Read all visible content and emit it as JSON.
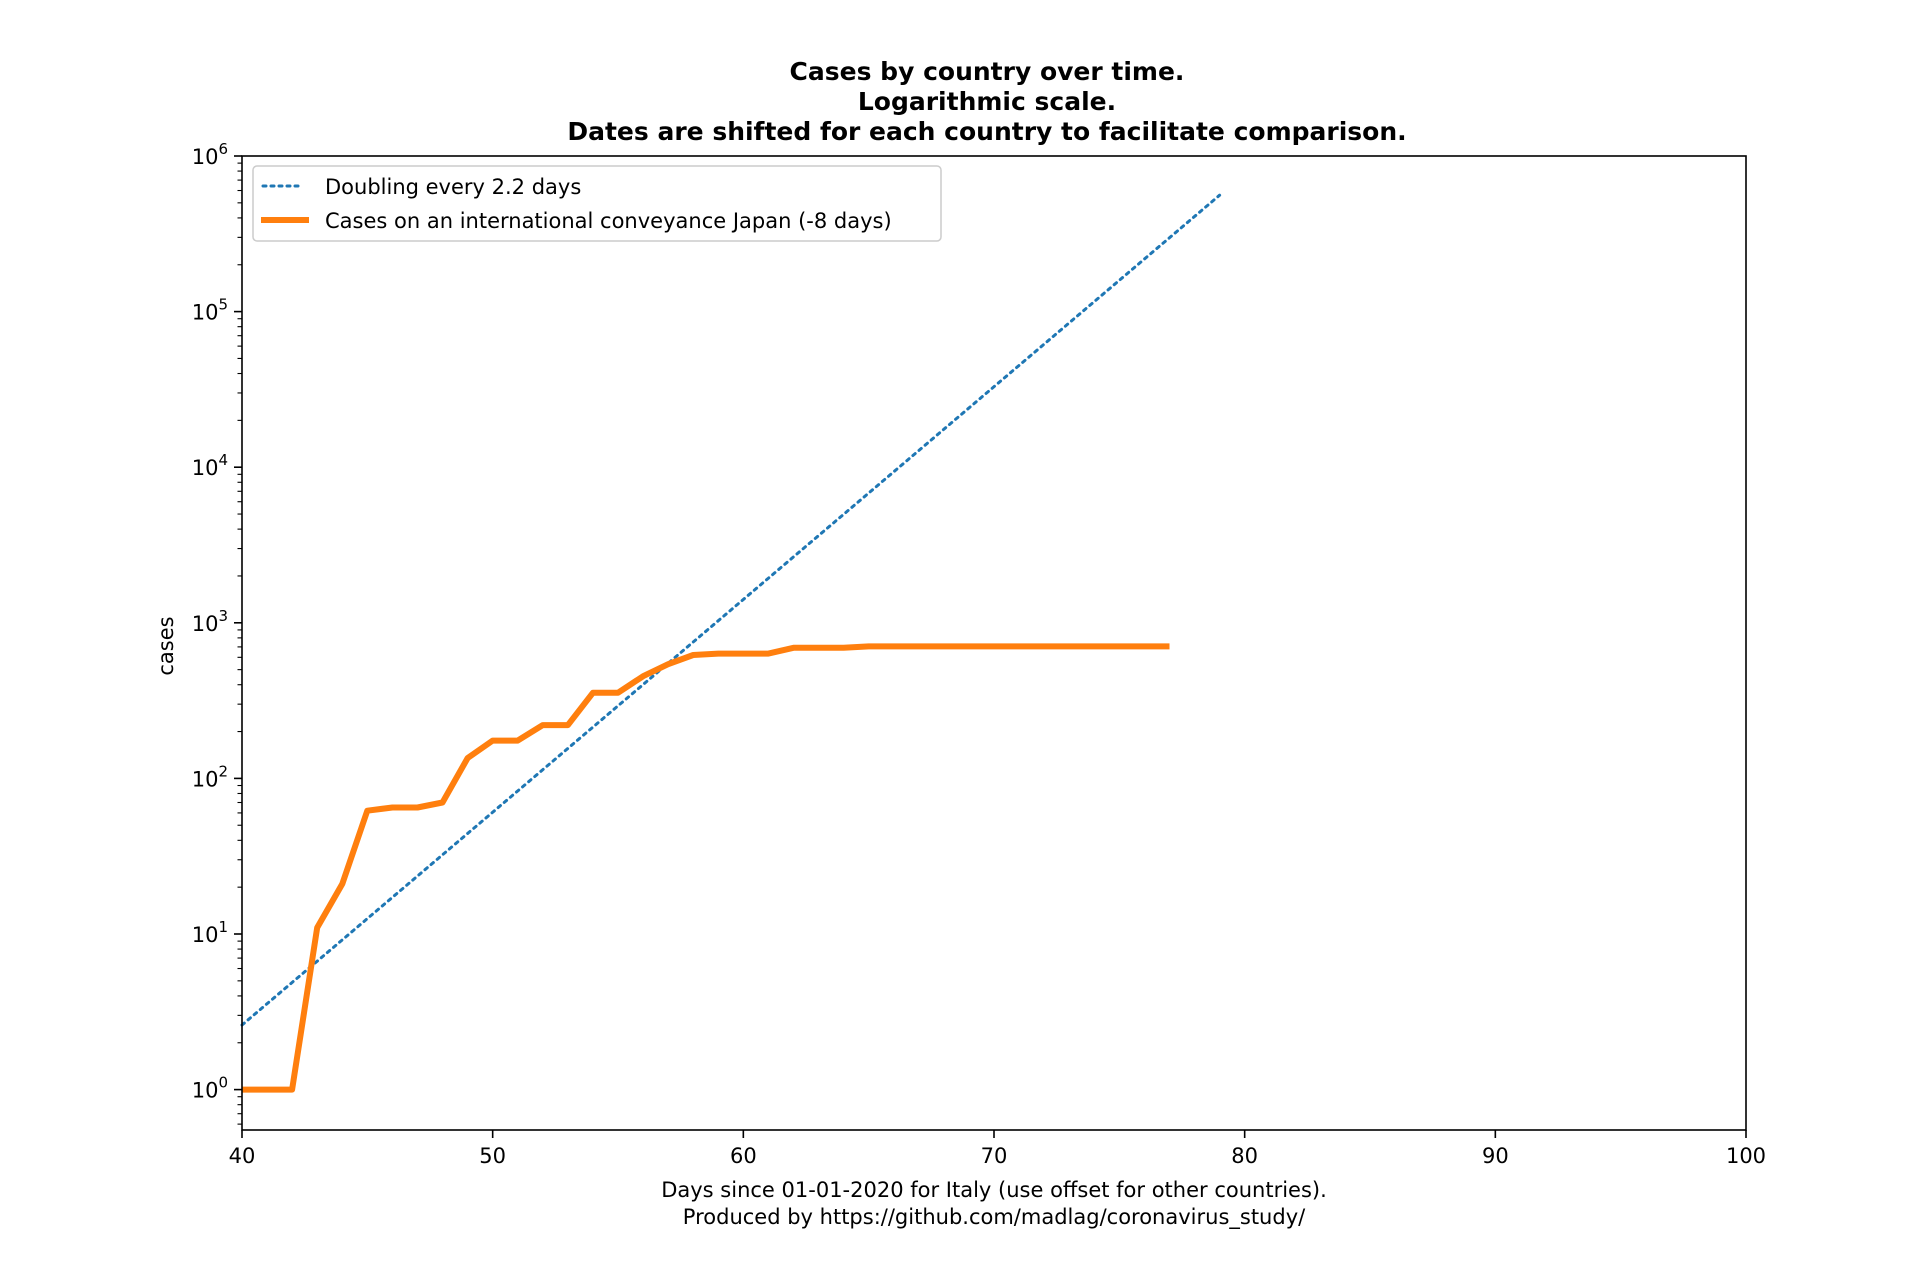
{
  "chart_data": {
    "type": "line",
    "title_lines": [
      "Cases by country over time.",
      "Logarithmic scale.",
      "Dates are shifted for each country to facilitate comparison."
    ],
    "xlabel_lines": [
      "Days since 01-01-2020 for Italy (use offset for other countries).",
      "Produced by https://github.com/madlag/coronavirus_study/"
    ],
    "ylabel": "cases",
    "xlim": [
      40,
      100
    ],
    "ylim": [
      0.55,
      1000000
    ],
    "yscale": "log",
    "xticks": [
      40,
      50,
      60,
      70,
      80,
      90,
      100
    ],
    "yticks": [
      {
        "value": 1,
        "base": "10",
        "exp": "0"
      },
      {
        "value": 10,
        "base": "10",
        "exp": "1"
      },
      {
        "value": 100,
        "base": "10",
        "exp": "2"
      },
      {
        "value": 1000,
        "base": "10",
        "exp": "3"
      },
      {
        "value": 10000,
        "base": "10",
        "exp": "4"
      },
      {
        "value": 100000,
        "base": "10",
        "exp": "5"
      },
      {
        "value": 1000000,
        "base": "10",
        "exp": "6"
      }
    ],
    "grid": false,
    "legend_position": "top-left",
    "series": [
      {
        "name": "Doubling every 2.2 days",
        "style": "dotted",
        "color": "#1f77b4",
        "x": [
          40,
          79
        ],
        "y": [
          2.6,
          560000
        ]
      },
      {
        "name": "Cases on an international conveyance Japan (-8 days)",
        "style": "solid",
        "color": "#ff7f0e",
        "x": [
          40,
          41,
          42,
          43,
          44,
          45,
          46,
          47,
          48,
          49,
          50,
          51,
          52,
          53,
          54,
          55,
          56,
          57,
          58,
          59,
          60,
          61,
          62,
          63,
          64,
          65,
          66,
          67,
          68,
          69,
          70,
          71,
          72,
          73,
          74,
          75,
          76,
          77
        ],
        "y": [
          1,
          1,
          1,
          11,
          21,
          62,
          65,
          65,
          70,
          135,
          175,
          175,
          220,
          220,
          355,
          355,
          454,
          542,
          621,
          634,
          634,
          634,
          691,
          691,
          691,
          705,
          705,
          705,
          705,
          705,
          705,
          705,
          705,
          705,
          705,
          705,
          705,
          705
        ]
      }
    ]
  }
}
